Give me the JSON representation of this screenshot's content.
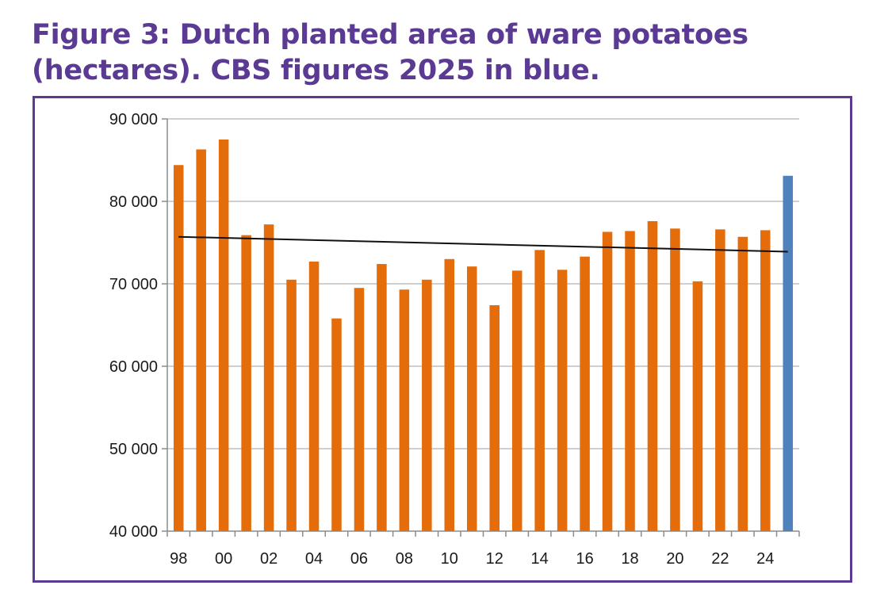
{
  "title_lines": [
    "Figure 3: Dutch planted area of ware potatoes",
    "(hectares). CBS figures 2025 in blue."
  ],
  "colors": {
    "title": "#5b3a93",
    "frame": "#5b3a93",
    "bar": "#e46c0a",
    "bar_highlight": "#4f81bd",
    "trend": "#111111",
    "grid": "#bfbfbf"
  },
  "chart_data": {
    "type": "bar",
    "title": "Figure 3: Dutch planted area of ware potatoes (hectares). CBS figures 2025 in blue.",
    "xlabel": "",
    "ylabel": "",
    "ylim": [
      40000,
      90000
    ],
    "y_ticks": [
      40000,
      50000,
      60000,
      70000,
      80000,
      90000
    ],
    "y_tick_labels": [
      "40 000",
      "50 000",
      "60 000",
      "70 000",
      "80 000",
      "90 000"
    ],
    "categories": [
      "1998",
      "1999",
      "2000",
      "2001",
      "2002",
      "2003",
      "2004",
      "2005",
      "2006",
      "2007",
      "2008",
      "2009",
      "2010",
      "2011",
      "2012",
      "2013",
      "2014",
      "2015",
      "2016",
      "2017",
      "2018",
      "2019",
      "2020",
      "2021",
      "2022",
      "2023",
      "2024",
      "2025"
    ],
    "x_tick_labels": [
      "98",
      "",
      "00",
      "",
      "02",
      "",
      "04",
      "",
      "06",
      "",
      "08",
      "",
      "10",
      "",
      "12",
      "",
      "14",
      "",
      "16",
      "",
      "18",
      "",
      "20",
      "",
      "22",
      "",
      "24",
      ""
    ],
    "values": [
      84400,
      86300,
      87500,
      75900,
      77200,
      70500,
      72700,
      65800,
      69500,
      72400,
      69300,
      70500,
      73000,
      72100,
      67400,
      71600,
      74100,
      71700,
      73300,
      76300,
      76400,
      77600,
      76700,
      70300,
      76600,
      75700,
      76500,
      83100
    ],
    "highlight": [
      "2025"
    ],
    "trendline": {
      "type": "linear",
      "start": 75700,
      "end": 73900
    },
    "grid": true,
    "legend": "none"
  }
}
